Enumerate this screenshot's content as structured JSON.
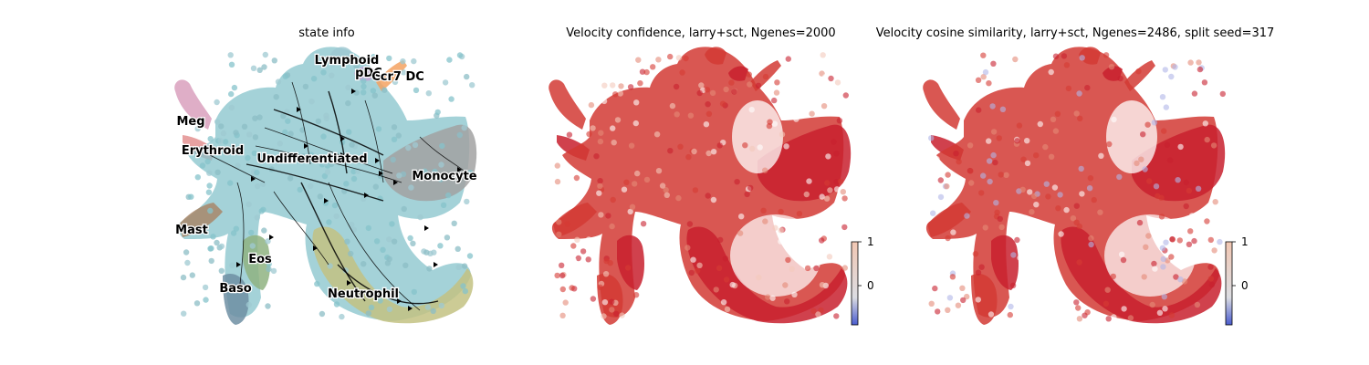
{
  "chart_data": [
    {
      "type": "scatter",
      "title": "state info",
      "legend": "on data",
      "grid": false,
      "clusters": [
        {
          "name": "Lymphoid",
          "color": "#9fc9d2"
        },
        {
          "name": "pDC",
          "color": "#c3a6d6"
        },
        {
          "name": "Ccr7 DC",
          "color": "#f4a261"
        },
        {
          "name": "Meg",
          "color": "#d9a0bd"
        },
        {
          "name": "Erythroid",
          "color": "#e39090"
        },
        {
          "name": "Undifferentiated",
          "color": "#86c3cb"
        },
        {
          "name": "Monocyte",
          "color": "#a2a2a2"
        },
        {
          "name": "Mast",
          "color": "#a8876a"
        },
        {
          "name": "Eos",
          "color": "#8fb381"
        },
        {
          "name": "Baso",
          "color": "#6f8fa3"
        },
        {
          "name": "Neutrophil",
          "color": "#c3c283"
        }
      ],
      "overlay": "velocity streamlines"
    },
    {
      "type": "scatter",
      "title": "Velocity confidence, larry+sct, Ngenes=2000",
      "colormap": "coolwarm",
      "colorbar_ticks": [
        "1",
        "0"
      ],
      "clim": [
        -0.5,
        1
      ]
    },
    {
      "type": "scatter",
      "title": "Velocity cosine similarity, larry+sct, Ngenes=2486, split seed=317",
      "colormap": "coolwarm",
      "colorbar_ticks": [
        "1",
        "0"
      ],
      "clim": [
        -0.5,
        1
      ]
    }
  ]
}
